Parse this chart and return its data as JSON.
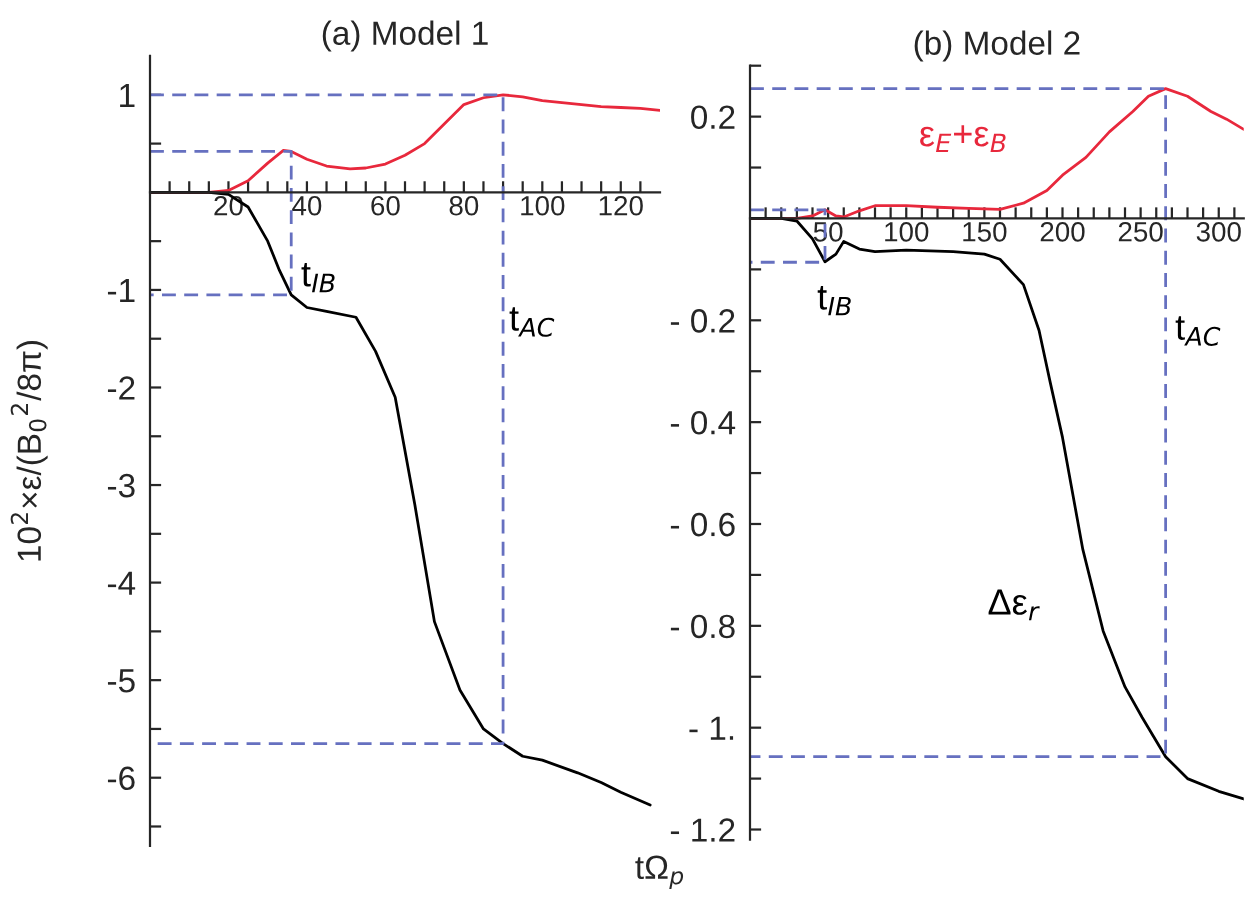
{
  "chart_data": [
    {
      "type": "line",
      "title": "(a) Model 1",
      "xlabel": "tΩ$_{p}$",
      "ylabel": "10$^{2}$×ε/(B$_{0}$$^{2}$/8π)",
      "xlim": [
        0,
        130
      ],
      "ylim": [
        -6.7,
        1.4
      ],
      "xticks": [
        {
          "value": 5,
          "label": null
        },
        {
          "value": 10,
          "label": null
        },
        {
          "value": 15,
          "label": null
        },
        20,
        {
          "value": 25,
          "label": null
        },
        {
          "value": 30,
          "label": null
        },
        {
          "value": 35,
          "label": null
        },
        40,
        {
          "value": 45,
          "label": null
        },
        {
          "value": 50,
          "label": null
        },
        {
          "value": 55,
          "label": null
        },
        60,
        {
          "value": 65,
          "label": null
        },
        {
          "value": 70,
          "label": null
        },
        {
          "value": 75,
          "label": null
        },
        80,
        {
          "value": 85,
          "label": null
        },
        {
          "value": 90,
          "label": null
        },
        {
          "value": 95,
          "label": null
        },
        100,
        {
          "value": 105,
          "label": null
        },
        {
          "value": 110,
          "label": null
        },
        {
          "value": 115,
          "label": null
        },
        120,
        {
          "value": 125,
          "label": null
        }
      ],
      "yticks": [
        1,
        {
          "value": 0.5,
          "label": null
        },
        {
          "value": -0.5,
          "label": null
        },
        -1,
        {
          "value": -1.5,
          "label": null
        },
        -2,
        {
          "value": -2.5,
          "label": null
        },
        -3,
        {
          "value": -3.5,
          "label": null
        },
        -4,
        {
          "value": -4.5,
          "label": null
        },
        -5,
        {
          "value": -5.5,
          "label": null
        },
        -6,
        {
          "value": -6.5,
          "label": null
        }
      ],
      "grid": false,
      "series": [
        {
          "color": "#e8283c",
          "x": [
            0,
            15,
            20,
            25,
            30,
            34,
            36,
            40,
            45,
            51,
            55,
            60,
            65,
            70,
            75,
            80,
            85,
            90,
            95,
            100,
            105,
            110,
            115,
            120,
            125,
            130
          ],
          "values": [
            0,
            0,
            0.02,
            0.12,
            0.3,
            0.43,
            0.42,
            0.34,
            0.27,
            0.24,
            0.25,
            0.29,
            0.38,
            0.5,
            0.7,
            0.9,
            0.97,
            1.0,
            0.98,
            0.94,
            0.92,
            0.9,
            0.88,
            0.87,
            0.86,
            0.84
          ]
        },
        {
          "color": "#000000",
          "x": [
            0,
            15,
            20,
            25,
            30,
            33,
            36,
            40,
            45,
            52.5,
            57.5,
            62.5,
            67.5,
            72.5,
            79,
            85,
            90,
            95,
            100,
            109,
            115,
            120,
            127.5
          ],
          "values": [
            0,
            0,
            -0.02,
            -0.15,
            -0.5,
            -0.8,
            -1.05,
            -1.18,
            -1.22,
            -1.28,
            -1.63,
            -2.1,
            -3.2,
            -4.4,
            -5.1,
            -5.5,
            -5.65,
            -5.78,
            -5.82,
            -5.95,
            -6.05,
            -6.15,
            -6.28
          ]
        },
        {
          "color": "#6670c0",
          "line_style": "dashed",
          "x": [
            0,
            36,
            36,
            0
          ],
          "values": [
            0.42,
            0.42,
            -1.05,
            -1.05
          ]
        },
        {
          "color": "#6670c0",
          "line_style": "dashed",
          "x": [
            0,
            90,
            90,
            0
          ],
          "values": [
            1.0,
            1.0,
            -5.65,
            -5.65
          ]
        }
      ],
      "annotations": [
        "t$_{IB}$",
        "t$_{AC}$"
      ]
    },
    {
      "type": "line",
      "title": "(b) Model 2",
      "xlim": [
        0,
        316
      ],
      "ylim": [
        -1.22,
        0.3
      ],
      "xticks": [
        {
          "value": 10,
          "label": null
        },
        {
          "value": 20,
          "label": null
        },
        {
          "value": 30,
          "label": null
        },
        {
          "value": 40,
          "label": null
        },
        50,
        {
          "value": 60,
          "label": null
        },
        {
          "value": 70,
          "label": null
        },
        {
          "value": 80,
          "label": null
        },
        {
          "value": 90,
          "label": null
        },
        100,
        {
          "value": 110,
          "label": null
        },
        {
          "value": 120,
          "label": null
        },
        {
          "value": 130,
          "label": null
        },
        {
          "value": 140,
          "label": null
        },
        150,
        {
          "value": 160,
          "label": null
        },
        {
          "value": 170,
          "label": null
        },
        {
          "value": 180,
          "label": null
        },
        {
          "value": 190,
          "label": null
        },
        200,
        {
          "value": 210,
          "label": null
        },
        {
          "value": 220,
          "label": null
        },
        {
          "value": 230,
          "label": null
        },
        {
          "value": 240,
          "label": null
        },
        250,
        {
          "value": 260,
          "label": null
        },
        {
          "value": 270,
          "label": null
        },
        {
          "value": 280,
          "label": null
        },
        {
          "value": 290,
          "label": null
        },
        300,
        {
          "value": 310,
          "label": null
        }
      ],
      "yticks": [
        {
          "value": 0.3,
          "label": null
        },
        0.2,
        {
          "value": 0.1,
          "label": null
        },
        {
          "value": -0.1,
          "label": null
        },
        {
          "value": -0.2,
          "label": "- 0.2"
        },
        {
          "value": -0.3,
          "label": null
        },
        {
          "value": -0.4,
          "label": "- 0.4"
        },
        {
          "value": -0.5,
          "label": null
        },
        {
          "value": -0.6,
          "label": "- 0.6"
        },
        {
          "value": -0.7,
          "label": null
        },
        {
          "value": -0.8,
          "label": "- 0.8"
        },
        {
          "value": -0.9,
          "label": null
        },
        {
          "value": -1.0,
          "label": "- 1."
        },
        {
          "value": -1.1,
          "label": null
        },
        {
          "value": -1.2,
          "label": "- 1.2"
        }
      ],
      "grid": false,
      "series": [
        {
          "name": "ε$_{E}$+ε$_{B}$",
          "color": "#e8283c",
          "x": [
            0,
            30,
            40,
            48,
            55,
            60,
            70,
            80,
            100,
            120,
            140,
            160,
            175,
            190,
            200,
            215,
            230,
            245,
            255,
            266,
            280,
            295,
            305,
            316
          ],
          "values": [
            0,
            0,
            0.005,
            0.017,
            0.005,
            0.003,
            0.015,
            0.025,
            0.025,
            0.022,
            0.02,
            0.018,
            0.03,
            0.055,
            0.085,
            0.12,
            0.17,
            0.21,
            0.24,
            0.255,
            0.24,
            0.21,
            0.195,
            0.175
          ]
        },
        {
          "color": "#000000",
          "x": [
            0,
            20,
            30,
            40,
            48,
            55,
            60,
            70,
            80,
            100,
            130,
            150,
            160,
            175,
            185,
            192,
            200,
            213,
            226,
            240,
            251,
            266,
            280,
            300,
            316
          ],
          "values": [
            0,
            0,
            -0.005,
            -0.04,
            -0.085,
            -0.07,
            -0.045,
            -0.06,
            -0.065,
            -0.062,
            -0.065,
            -0.07,
            -0.08,
            -0.13,
            -0.22,
            -0.32,
            -0.43,
            -0.65,
            -0.81,
            -0.92,
            -0.98,
            -1.057,
            -1.1,
            -1.125,
            -1.14
          ]
        },
        {
          "color": "#6670c0",
          "line_style": "dashed",
          "x": [
            0,
            48,
            48,
            0
          ],
          "values": [
            0.017,
            0.017,
            -0.086,
            -0.086
          ]
        },
        {
          "color": "#6670c0",
          "line_style": "dashed",
          "x": [
            0,
            266,
            266,
            0
          ],
          "values": [
            0.255,
            0.255,
            -1.057,
            -1.057
          ]
        }
      ],
      "annotations": [
        "t$_{IB}$",
        "t$_{AC}$",
        "Δε$_{r}$"
      ]
    }
  ]
}
